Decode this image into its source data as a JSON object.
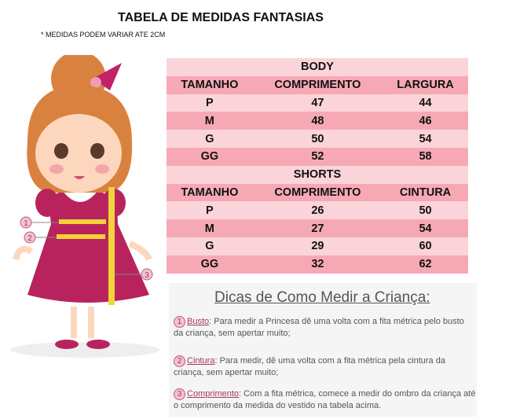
{
  "header": {
    "title": "TABELA DE MEDIDAS FANTASIAS",
    "note": "* MEDIDAS PODEM VARIAR ATE  2CM"
  },
  "table": {
    "sections": [
      {
        "title": "BODY",
        "columns": [
          "TAMANHO",
          "COMPRIMENTO",
          "LARGURA"
        ],
        "rows": [
          [
            "P",
            47,
            44
          ],
          [
            "M",
            48,
            46
          ],
          [
            "G",
            50,
            54
          ],
          [
            "GG",
            52,
            58
          ]
        ]
      },
      {
        "title": "SHORTS",
        "columns": [
          "TAMANHO",
          "COMPRIMENTO",
          "CINTURA"
        ],
        "rows": [
          [
            "P",
            26,
            50
          ],
          [
            "M",
            27,
            54
          ],
          [
            "G",
            29,
            60
          ],
          [
            "GG",
            32,
            62
          ]
        ]
      }
    ]
  },
  "tips": {
    "title": "Dicas de Como Medir a Criança:",
    "items": [
      {
        "number": "1",
        "label": "Busto",
        "text": ": Para medir a Princesa dê uma volta com a fita métrica pelo busto da criança, sem apertar muito;"
      },
      {
        "number": "2",
        "label": "Cintura",
        "text": ": Para medir, dê uma volta com a fita métrica pela cintura da criança, sem apertar muito;"
      },
      {
        "number": "3",
        "label": "Comprimento",
        "text": ": Com a fita métrica, comece a medir do ombro da criança até o comprimento da medida do vestido na tabela acima."
      }
    ]
  },
  "illustration": {
    "markers": [
      "1",
      "2",
      "3"
    ]
  }
}
